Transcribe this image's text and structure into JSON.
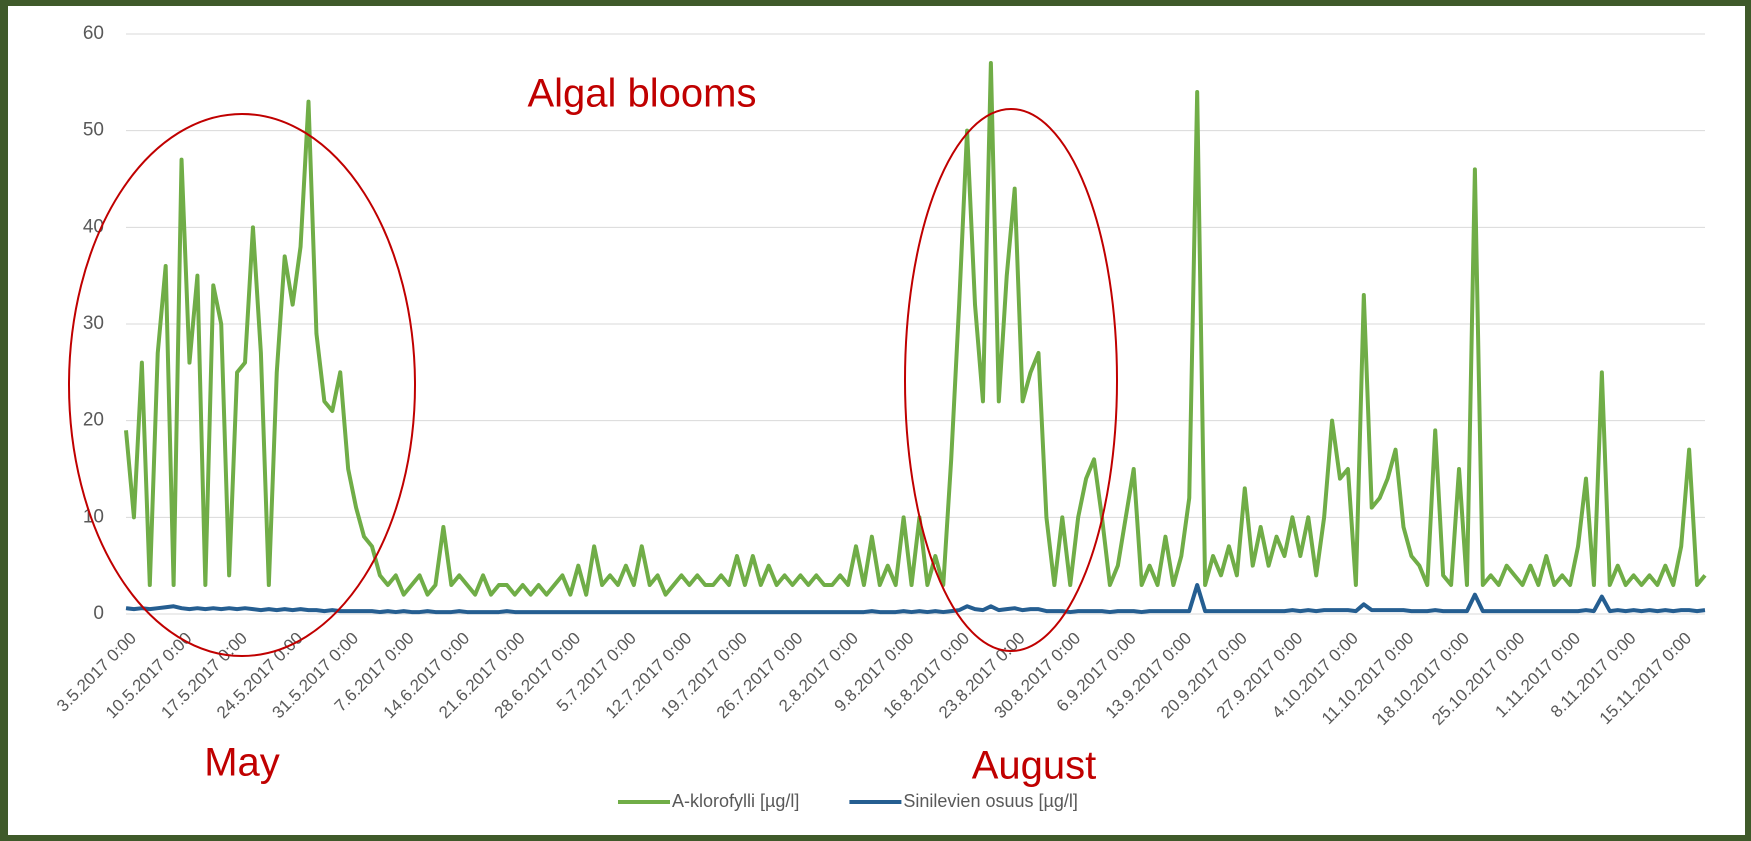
{
  "chart_data": {
    "type": "line",
    "annotations": [
      "Algal blooms",
      "May",
      "August"
    ],
    "categories": [
      "3.5.2017 0:00",
      null,
      null,
      null,
      null,
      null,
      null,
      "10.5.2017 0:00",
      null,
      null,
      null,
      null,
      null,
      null,
      "17.5.2017 0:00",
      null,
      null,
      null,
      null,
      null,
      null,
      "24.5.2017 0:00",
      null,
      null,
      null,
      null,
      null,
      null,
      "31.5.2017 0:00",
      null,
      null,
      null,
      null,
      null,
      null,
      "7.6.2017 0:00",
      null,
      null,
      null,
      null,
      null,
      null,
      "14.6.2017 0:00",
      null,
      null,
      null,
      null,
      null,
      null,
      "21.6.2017 0:00",
      null,
      null,
      null,
      null,
      null,
      null,
      "28.6.2017 0:00",
      null,
      null,
      null,
      null,
      null,
      null,
      "5.7.2017 0:00",
      null,
      null,
      null,
      null,
      null,
      null,
      "12.7.2017 0:00",
      null,
      null,
      null,
      null,
      null,
      null,
      "19.7.2017 0:00",
      null,
      null,
      null,
      null,
      null,
      null,
      "26.7.2017 0:00",
      null,
      null,
      null,
      null,
      null,
      null,
      "2.8.2017 0:00",
      null,
      null,
      null,
      null,
      null,
      null,
      "9.8.2017 0:00",
      null,
      null,
      null,
      null,
      null,
      null,
      "16.8.2017 0:00",
      null,
      null,
      null,
      null,
      null,
      null,
      "23.8.2017 0:00",
      null,
      null,
      null,
      null,
      null,
      null,
      "30.8.2017 0:00",
      null,
      null,
      null,
      null,
      null,
      null,
      "6.9.2017 0:00",
      null,
      null,
      null,
      null,
      null,
      null,
      "13.9.2017 0:00",
      null,
      null,
      null,
      null,
      null,
      null,
      "20.9.2017 0:00",
      null,
      null,
      null,
      null,
      null,
      null,
      "27.9.2017 0:00",
      null,
      null,
      null,
      null,
      null,
      null,
      "4.10.2017 0:00",
      null,
      null,
      null,
      null,
      null,
      null,
      "11.10.2017 0:00",
      null,
      null,
      null,
      null,
      null,
      null,
      "18.10.2017 0:00",
      null,
      null,
      null,
      null,
      null,
      null,
      "25.10.2017 0:00",
      null,
      null,
      null,
      null,
      null,
      null,
      "1.11.2017 0:00",
      null,
      null,
      null,
      null,
      null,
      null,
      "8.11.2017 0:00",
      null,
      null,
      null,
      null,
      null,
      null,
      "15.11.2017 0:00",
      null,
      null,
      null
    ],
    "series": [
      {
        "name": "A-klorofylli [µg/l]",
        "color": "#70ad47",
        "values": [
          19,
          10,
          26,
          3,
          27,
          36,
          3,
          47,
          26,
          35,
          3,
          34,
          30,
          4,
          25,
          26,
          40,
          27,
          3,
          25,
          37,
          32,
          38,
          53,
          29,
          22,
          21,
          25,
          15,
          11,
          8,
          7,
          4,
          3,
          4,
          2,
          3,
          4,
          2,
          3,
          9,
          3,
          4,
          3,
          2,
          4,
          2,
          3,
          3,
          2,
          3,
          2,
          3,
          2,
          3,
          4,
          2,
          5,
          2,
          7,
          3,
          4,
          3,
          5,
          3,
          7,
          3,
          4,
          2,
          3,
          4,
          3,
          4,
          3,
          3,
          4,
          3,
          6,
          3,
          6,
          3,
          5,
          3,
          4,
          3,
          4,
          3,
          4,
          3,
          3,
          4,
          3,
          7,
          3,
          8,
          3,
          5,
          3,
          10,
          3,
          10,
          3,
          6,
          3,
          16,
          32,
          50,
          32,
          22,
          57,
          22,
          35,
          44,
          22,
          25,
          27,
          10,
          3,
          10,
          3,
          10,
          14,
          16,
          10,
          3,
          5,
          10,
          15,
          3,
          5,
          3,
          8,
          3,
          6,
          12,
          54,
          3,
          6,
          4,
          7,
          4,
          13,
          5,
          9,
          5,
          8,
          6,
          10,
          6,
          10,
          4,
          10,
          20,
          14,
          15,
          3,
          33,
          11,
          12,
          14,
          17,
          9,
          6,
          5,
          3,
          19,
          4,
          3,
          15,
          3,
          46,
          3,
          4,
          3,
          5,
          4,
          3,
          5,
          3,
          6,
          3,
          4,
          3,
          7,
          14,
          3,
          25,
          3,
          5,
          3,
          4,
          3,
          4,
          3,
          5,
          3,
          7,
          17,
          3,
          4
        ]
      },
      {
        "name": "Sinilevien osuus [µg/l]",
        "color": "#255e91",
        "values": [
          0.6,
          0.5,
          0.6,
          0.5,
          0.6,
          0.7,
          0.8,
          0.6,
          0.5,
          0.6,
          0.5,
          0.6,
          0.5,
          0.6,
          0.5,
          0.6,
          0.5,
          0.4,
          0.5,
          0.4,
          0.5,
          0.4,
          0.5,
          0.4,
          0.4,
          0.3,
          0.4,
          0.3,
          0.3,
          0.3,
          0.3,
          0.3,
          0.2,
          0.3,
          0.2,
          0.3,
          0.2,
          0.2,
          0.3,
          0.2,
          0.2,
          0.2,
          0.3,
          0.2,
          0.2,
          0.2,
          0.2,
          0.2,
          0.3,
          0.2,
          0.2,
          0.2,
          0.2,
          0.2,
          0.2,
          0.2,
          0.2,
          0.2,
          0.2,
          0.2,
          0.2,
          0.2,
          0.2,
          0.2,
          0.2,
          0.2,
          0.2,
          0.2,
          0.2,
          0.2,
          0.2,
          0.2,
          0.2,
          0.2,
          0.2,
          0.2,
          0.2,
          0.2,
          0.2,
          0.2,
          0.2,
          0.2,
          0.2,
          0.2,
          0.2,
          0.2,
          0.2,
          0.2,
          0.2,
          0.2,
          0.2,
          0.2,
          0.2,
          0.2,
          0.3,
          0.2,
          0.2,
          0.2,
          0.3,
          0.2,
          0.3,
          0.2,
          0.3,
          0.2,
          0.3,
          0.4,
          0.8,
          0.5,
          0.4,
          0.8,
          0.4,
          0.5,
          0.6,
          0.4,
          0.5,
          0.5,
          0.3,
          0.3,
          0.3,
          0.2,
          0.3,
          0.3,
          0.3,
          0.3,
          0.2,
          0.3,
          0.3,
          0.3,
          0.2,
          0.3,
          0.3,
          0.3,
          0.3,
          0.3,
          0.3,
          3,
          0.3,
          0.3,
          0.3,
          0.3,
          0.3,
          0.3,
          0.3,
          0.3,
          0.3,
          0.3,
          0.3,
          0.4,
          0.3,
          0.4,
          0.3,
          0.4,
          0.4,
          0.4,
          0.4,
          0.3,
          1,
          0.4,
          0.4,
          0.4,
          0.4,
          0.4,
          0.3,
          0.3,
          0.3,
          0.4,
          0.3,
          0.3,
          0.3,
          0.3,
          2,
          0.3,
          0.3,
          0.3,
          0.3,
          0.3,
          0.3,
          0.3,
          0.3,
          0.3,
          0.3,
          0.3,
          0.3,
          0.3,
          0.4,
          0.3,
          1.8,
          0.3,
          0.4,
          0.3,
          0.4,
          0.3,
          0.4,
          0.3,
          0.4,
          0.3,
          0.4,
          0.4,
          0.3,
          0.4
        ]
      }
    ],
    "ylim": [
      0,
      60
    ],
    "yticks": [
      0,
      10,
      20,
      30,
      40,
      50,
      60
    ],
    "grid": true,
    "legend": "bottom"
  }
}
